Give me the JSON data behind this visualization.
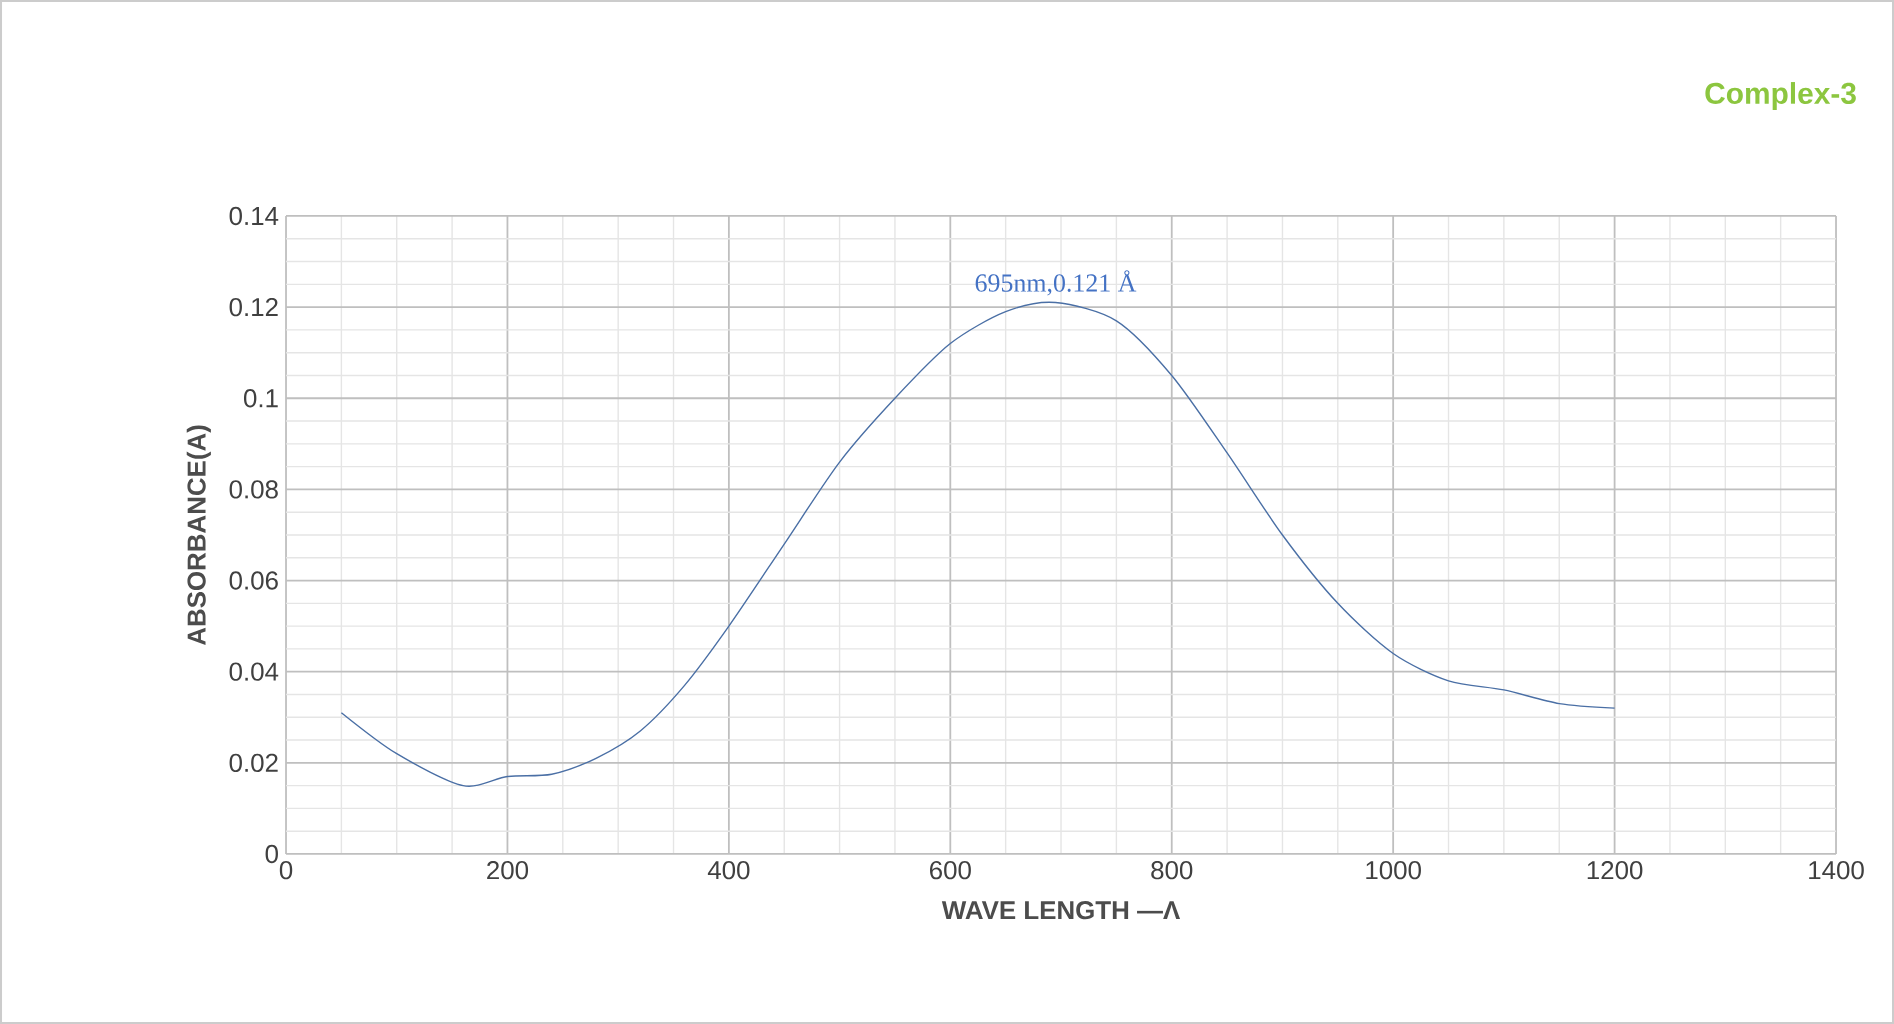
{
  "chart_data": {
    "type": "line",
    "title": "Complex-3",
    "xlabel": "WAVE LENGTH —Λ",
    "ylabel": "ABSORBANCE(A)",
    "annotations": [
      {
        "text": "695nm,0.121 Å",
        "x": 695,
        "y": 0.121
      }
    ],
    "x": [
      50,
      100,
      160,
      200,
      240,
      280,
      320,
      360,
      400,
      450,
      500,
      550,
      600,
      650,
      695,
      750,
      800,
      850,
      900,
      950,
      1000,
      1050,
      1100,
      1150,
      1200
    ],
    "series": [
      {
        "color": "#4a6fa5",
        "values": [
          0.031,
          0.022,
          0.015,
          0.017,
          0.0175,
          0.021,
          0.027,
          0.037,
          0.05,
          0.068,
          0.086,
          0.1,
          0.112,
          0.119,
          0.121,
          0.117,
          0.105,
          0.088,
          0.07,
          0.055,
          0.044,
          0.038,
          0.036,
          0.033,
          0.032
        ]
      }
    ],
    "xlim": [
      0,
      1400
    ],
    "xticks": [
      0,
      200,
      400,
      600,
      800,
      1000,
      1200,
      1400
    ],
    "ylim": [
      0,
      0.14
    ],
    "yticks": [
      {
        "value": 0,
        "label": "0"
      },
      {
        "value": 0.02,
        "label": "0.02"
      },
      {
        "value": 0.04,
        "label": "0.04"
      },
      {
        "value": 0.06,
        "label": "0.06"
      },
      {
        "value": 0.08,
        "label": "0.08"
      },
      {
        "value": 0.1,
        "label": "0.1"
      },
      {
        "value": 0.12,
        "label": "0.12"
      },
      {
        "value": 0.14,
        "label": "0.14"
      }
    ],
    "grid": true,
    "marker": "none",
    "line_style": "solid"
  }
}
